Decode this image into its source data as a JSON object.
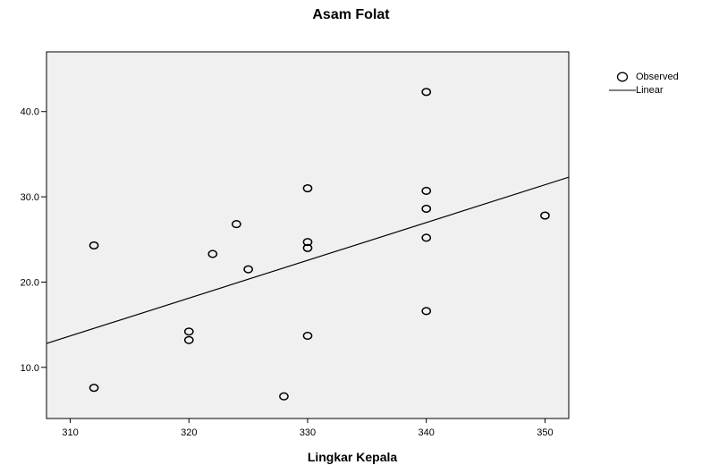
{
  "chart_data": {
    "type": "scatter",
    "title": "Asam Folat",
    "xlabel": "Lingkar Kepala",
    "ylabel": "",
    "xlim": [
      308,
      352
    ],
    "ylim": [
      4,
      47
    ],
    "x_ticks": [
      "310",
      "320",
      "330",
      "340",
      "350"
    ],
    "y_ticks": [
      "10.0",
      "20.0",
      "30.0",
      "40.0"
    ],
    "grid": false,
    "background": "#f0f0f0",
    "legend": {
      "position": "top-right",
      "observed_label": "Observed",
      "linear_label": "Linear"
    },
    "series": [
      {
        "name": "Observed",
        "marker": "open-circle",
        "points": [
          {
            "x": 312,
            "y": 24.3
          },
          {
            "x": 312,
            "y": 7.6
          },
          {
            "x": 320,
            "y": 14.2
          },
          {
            "x": 320,
            "y": 13.2
          },
          {
            "x": 322,
            "y": 23.3
          },
          {
            "x": 324,
            "y": 26.8
          },
          {
            "x": 325,
            "y": 21.5
          },
          {
            "x": 328,
            "y": 6.6
          },
          {
            "x": 330,
            "y": 31.0
          },
          {
            "x": 330,
            "y": 24.7
          },
          {
            "x": 330,
            "y": 24.0
          },
          {
            "x": 330,
            "y": 13.7
          },
          {
            "x": 340,
            "y": 42.3
          },
          {
            "x": 340,
            "y": 30.7
          },
          {
            "x": 340,
            "y": 28.6
          },
          {
            "x": 340,
            "y": 25.2
          },
          {
            "x": 340,
            "y": 16.6
          },
          {
            "x": 350,
            "y": 27.8
          }
        ]
      },
      {
        "name": "Linear",
        "type": "line",
        "points": [
          {
            "x": 308,
            "y": 12.8
          },
          {
            "x": 352,
            "y": 32.3
          }
        ]
      }
    ]
  }
}
